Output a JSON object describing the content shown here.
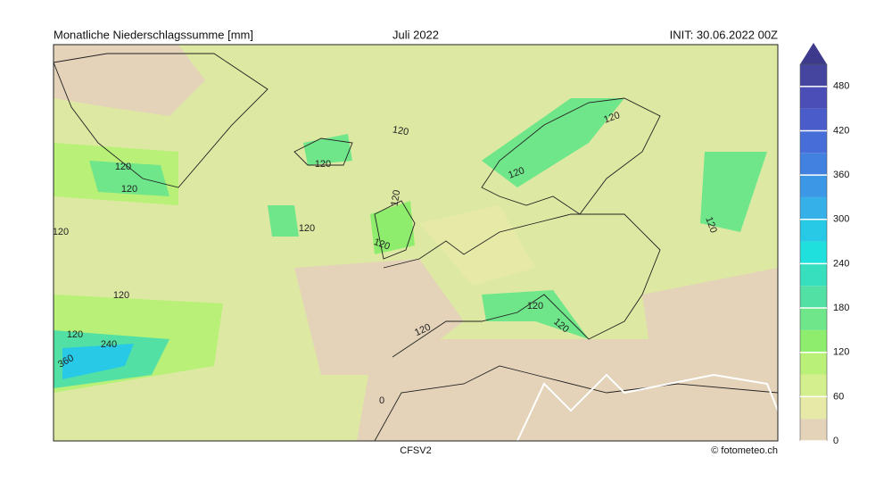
{
  "header": {
    "left": "Monatliche Niederschlagssumme [mm]",
    "center": "Juli 2022",
    "right": "INIT: 30.06.2022 00Z"
  },
  "footer": {
    "model": "CFSV2",
    "credit": "© fotometeo.ch"
  },
  "colorbar": {
    "range": [
      0,
      510
    ],
    "ticks": [
      0,
      60,
      120,
      180,
      240,
      300,
      360,
      420,
      480
    ],
    "bounds": [
      0,
      30,
      60,
      90,
      120,
      150,
      180,
      210,
      240,
      270,
      300,
      330,
      360,
      390,
      420,
      450,
      480,
      510
    ],
    "colors": [
      "#e4d3b9",
      "#e6eaa6",
      "#d3ef8e",
      "#b8f078",
      "#8eed6c",
      "#6fe68a",
      "#52e0a4",
      "#38dfbf",
      "#1fe0dc",
      "#28c9e6",
      "#35b0e8",
      "#3c98e6",
      "#4281e0",
      "#476dd8",
      "#4a5cc9",
      "#4a4eb6",
      "#45449f"
    ],
    "extend_color": "#3d3a8c"
  },
  "contour_labels": [
    120,
    120,
    120,
    120,
    120,
    120,
    120,
    120,
    120,
    120,
    240,
    360,
    120,
    120,
    120,
    120,
    120,
    120,
    0
  ]
}
